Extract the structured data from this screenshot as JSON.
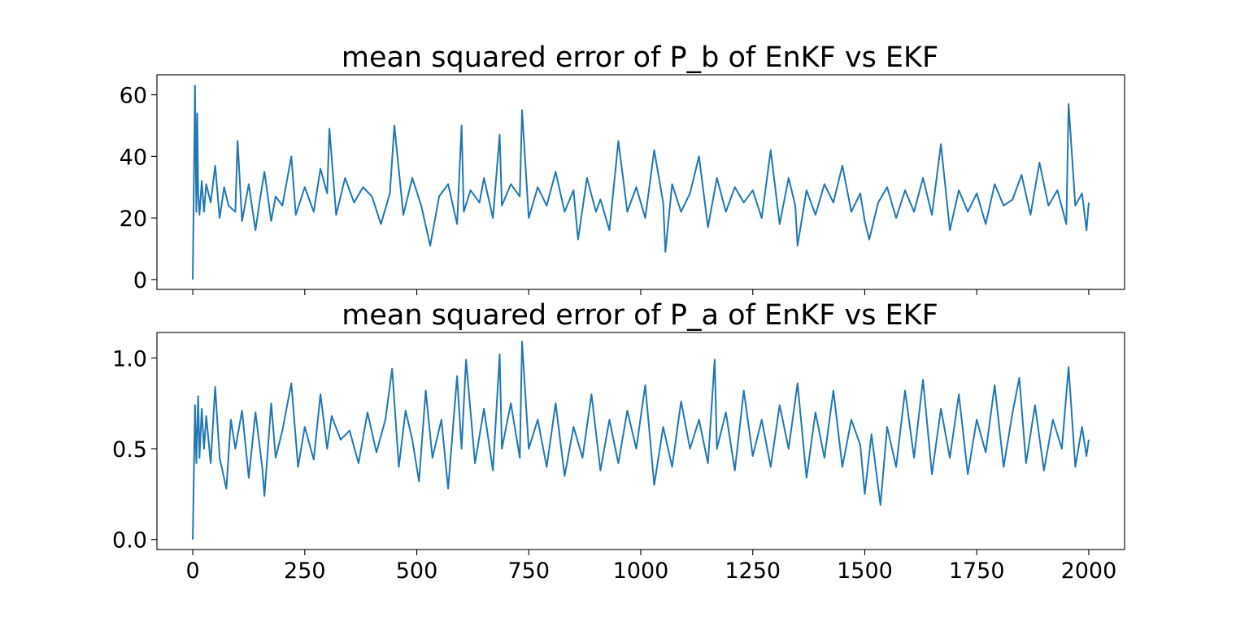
{
  "chart_data": [
    {
      "type": "line",
      "title": "mean squared error of P_b of EnKF vs EKF",
      "xlim": [
        -80,
        2080
      ],
      "ylim": [
        -3.2,
        66.5
      ],
      "x_ticks": [
        0,
        250,
        500,
        750,
        1000,
        1250,
        1500,
        1750,
        2000
      ],
      "y_ticks": [
        0,
        20,
        40,
        60
      ],
      "y_tick_labels": [
        "0",
        "20",
        "40",
        "60"
      ],
      "show_x_tick_labels": false,
      "grid": false,
      "color": "#1f77b4",
      "series": [
        {
          "x": [
            0,
            5,
            8,
            10,
            12,
            15,
            20,
            25,
            30,
            40,
            50,
            60,
            70,
            80,
            95,
            100,
            110,
            125,
            140,
            150,
            160,
            175,
            185,
            200,
            220,
            230,
            250,
            270,
            285,
            300,
            305,
            320,
            340,
            360,
            380,
            400,
            420,
            440,
            450,
            470,
            490,
            510,
            530,
            550,
            570,
            590,
            600,
            605,
            620,
            640,
            650,
            670,
            685,
            690,
            710,
            730,
            735,
            750,
            770,
            790,
            810,
            830,
            850,
            860,
            880,
            900,
            910,
            930,
            950,
            970,
            990,
            1010,
            1030,
            1050,
            1055,
            1070,
            1090,
            1110,
            1130,
            1150,
            1170,
            1190,
            1210,
            1230,
            1250,
            1270,
            1290,
            1310,
            1330,
            1345,
            1350,
            1370,
            1390,
            1410,
            1430,
            1450,
            1470,
            1490,
            1500,
            1510,
            1530,
            1550,
            1570,
            1590,
            1610,
            1630,
            1650,
            1670,
            1690,
            1710,
            1730,
            1750,
            1770,
            1790,
            1810,
            1830,
            1850,
            1870,
            1890,
            1910,
            1930,
            1950,
            1955,
            1970,
            1985,
            1995,
            2000
          ],
          "y": [
            0,
            63,
            22,
            54,
            28,
            21,
            32,
            22,
            31,
            25,
            37,
            20,
            30,
            24,
            22,
            45,
            19,
            31,
            16,
            26,
            35,
            19,
            27,
            24,
            40,
            21,
            30,
            22,
            36,
            28,
            49,
            21,
            33,
            25,
            30,
            27,
            18,
            28,
            50,
            21,
            33,
            24,
            11,
            27,
            31,
            18,
            50,
            22,
            29,
            25,
            33,
            20,
            47,
            24,
            31,
            27,
            55,
            20,
            30,
            24,
            35,
            22,
            29,
            13,
            33,
            22,
            26,
            16,
            45,
            22,
            30,
            20,
            42,
            25,
            9,
            31,
            22,
            28,
            40,
            17,
            33,
            22,
            30,
            25,
            29,
            20,
            42,
            18,
            33,
            24,
            11,
            29,
            21,
            31,
            25,
            37,
            22,
            28,
            19,
            13,
            25,
            30,
            20,
            29,
            22,
            33,
            21,
            44,
            16,
            29,
            22,
            28,
            18,
            31,
            24,
            26,
            34,
            21,
            38,
            24,
            29,
            18,
            57,
            24,
            28,
            16,
            25
          ]
        }
      ]
    },
    {
      "type": "line",
      "title": "mean squared error of P_a of EnKF vs EKF",
      "xlim": [
        -80,
        2080
      ],
      "ylim": [
        -0.055,
        1.14
      ],
      "x_ticks": [
        0,
        250,
        500,
        750,
        1000,
        1250,
        1500,
        1750,
        2000
      ],
      "x_tick_labels": [
        "0",
        "250",
        "500",
        "750",
        "1000",
        "1250",
        "1500",
        "1750",
        "2000"
      ],
      "y_ticks": [
        0.0,
        0.5,
        1.0
      ],
      "y_tick_labels": [
        "0.0",
        "0.5",
        "1.0"
      ],
      "show_x_tick_labels": true,
      "grid": false,
      "color": "#1f77b4",
      "series": [
        {
          "x": [
            0,
            5,
            8,
            12,
            15,
            20,
            25,
            30,
            40,
            50,
            60,
            75,
            85,
            95,
            110,
            125,
            140,
            155,
            160,
            175,
            185,
            200,
            220,
            235,
            250,
            270,
            285,
            300,
            310,
            330,
            350,
            370,
            390,
            410,
            430,
            445,
            460,
            475,
            490,
            505,
            520,
            535,
            555,
            570,
            590,
            600,
            610,
            630,
            650,
            670,
            685,
            690,
            710,
            730,
            735,
            750,
            770,
            790,
            810,
            830,
            850,
            870,
            890,
            910,
            930,
            950,
            970,
            990,
            1010,
            1030,
            1050,
            1070,
            1090,
            1110,
            1130,
            1150,
            1165,
            1170,
            1190,
            1210,
            1230,
            1250,
            1270,
            1290,
            1310,
            1330,
            1350,
            1370,
            1390,
            1410,
            1430,
            1450,
            1470,
            1490,
            1500,
            1515,
            1535,
            1550,
            1570,
            1590,
            1610,
            1630,
            1650,
            1670,
            1690,
            1710,
            1730,
            1750,
            1770,
            1790,
            1810,
            1830,
            1845,
            1860,
            1880,
            1900,
            1920,
            1940,
            1955,
            1970,
            1985,
            1995,
            2000
          ],
          "y": [
            0.0,
            0.74,
            0.42,
            0.79,
            0.45,
            0.72,
            0.5,
            0.68,
            0.42,
            0.84,
            0.45,
            0.28,
            0.66,
            0.5,
            0.71,
            0.34,
            0.7,
            0.4,
            0.24,
            0.75,
            0.45,
            0.6,
            0.86,
            0.4,
            0.62,
            0.44,
            0.8,
            0.5,
            0.68,
            0.55,
            0.6,
            0.42,
            0.7,
            0.48,
            0.66,
            0.94,
            0.4,
            0.71,
            0.55,
            0.32,
            0.82,
            0.45,
            0.66,
            0.28,
            0.9,
            0.5,
            0.99,
            0.42,
            0.72,
            0.38,
            1.02,
            0.5,
            0.75,
            0.45,
            1.09,
            0.5,
            0.66,
            0.4,
            0.75,
            0.35,
            0.62,
            0.45,
            0.8,
            0.38,
            0.66,
            0.42,
            0.71,
            0.5,
            0.85,
            0.3,
            0.62,
            0.4,
            0.76,
            0.5,
            0.66,
            0.42,
            0.99,
            0.5,
            0.7,
            0.38,
            0.82,
            0.46,
            0.66,
            0.4,
            0.74,
            0.5,
            0.86,
            0.34,
            0.7,
            0.45,
            0.82,
            0.4,
            0.66,
            0.52,
            0.25,
            0.58,
            0.19,
            0.62,
            0.4,
            0.82,
            0.45,
            0.88,
            0.36,
            0.72,
            0.45,
            0.8,
            0.36,
            0.66,
            0.48,
            0.85,
            0.4,
            0.7,
            0.89,
            0.42,
            0.74,
            0.38,
            0.66,
            0.5,
            0.95,
            0.4,
            0.62,
            0.46,
            0.55
          ]
        }
      ]
    }
  ]
}
